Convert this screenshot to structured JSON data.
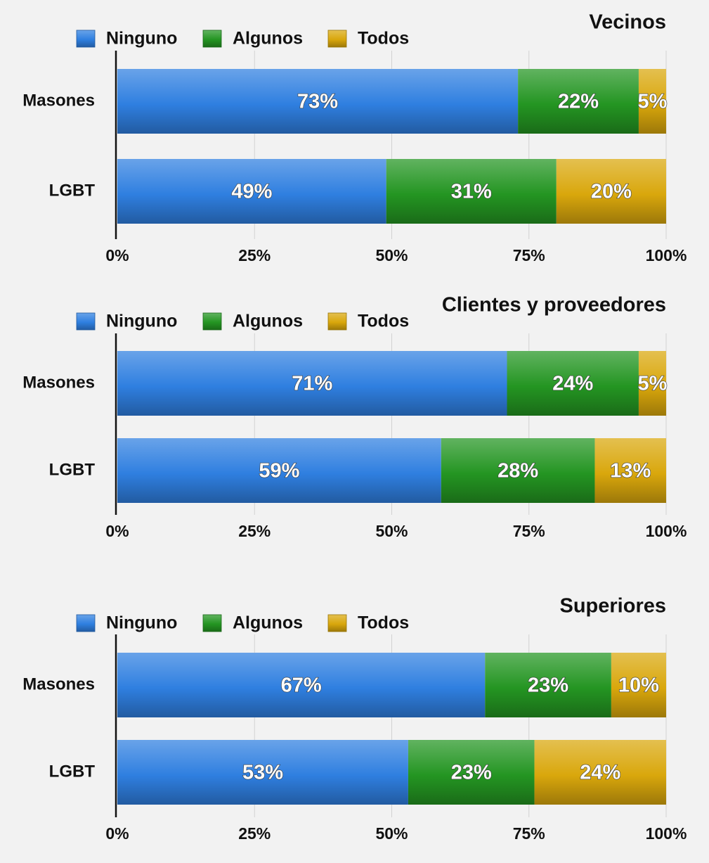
{
  "chart_data": [
    {
      "type": "bar",
      "orientation": "horizontal",
      "stacked": true,
      "title": "Vecinos",
      "categories": [
        "Masones",
        "LGBT"
      ],
      "series": [
        {
          "name": "Ninguno",
          "values": [
            73,
            49
          ],
          "color": "#2f7fe0",
          "labels": [
            "73%",
            "49%"
          ]
        },
        {
          "name": "Algunos",
          "values": [
            22,
            31
          ],
          "color": "#249522",
          "labels": [
            "22%",
            "31%"
          ]
        },
        {
          "name": "Todos",
          "values": [
            5,
            20
          ],
          "color": "#d9a70c",
          "labels": [
            "5%",
            "20%"
          ]
        }
      ],
      "xlim": [
        0,
        100
      ],
      "xticks": [
        "0%",
        "25%",
        "50%",
        "75%",
        "100%"
      ],
      "grid": true,
      "legend_position": "top-left"
    },
    {
      "type": "bar",
      "orientation": "horizontal",
      "stacked": true,
      "title": "Clientes y proveedores",
      "categories": [
        "Masones",
        "LGBT"
      ],
      "series": [
        {
          "name": "Ninguno",
          "values": [
            71,
            59
          ],
          "color": "#2f7fe0",
          "labels": [
            "71%",
            "59%"
          ]
        },
        {
          "name": "Algunos",
          "values": [
            24,
            28
          ],
          "color": "#249522",
          "labels": [
            "24%",
            "28%"
          ]
        },
        {
          "name": "Todos",
          "values": [
            5,
            13
          ],
          "color": "#d9a70c",
          "labels": [
            "5%",
            "13%"
          ]
        }
      ],
      "xlim": [
        0,
        100
      ],
      "xticks": [
        "0%",
        "25%",
        "50%",
        "75%",
        "100%"
      ],
      "grid": true,
      "legend_position": "top-left"
    },
    {
      "type": "bar",
      "orientation": "horizontal",
      "stacked": true,
      "title": "Superiores",
      "categories": [
        "Masones",
        "LGBT"
      ],
      "series": [
        {
          "name": "Ninguno",
          "values": [
            67,
            53
          ],
          "color": "#2f7fe0",
          "labels": [
            "67%",
            "53%"
          ]
        },
        {
          "name": "Algunos",
          "values": [
            23,
            23
          ],
          "color": "#249522",
          "labels": [
            "23%",
            "23%"
          ]
        },
        {
          "name": "Todos",
          "values": [
            10,
            24
          ],
          "color": "#d9a70c",
          "labels": [
            "10%",
            "24%"
          ]
        }
      ],
      "xlim": [
        0,
        100
      ],
      "xticks": [
        "0%",
        "25%",
        "50%",
        "75%",
        "100%"
      ],
      "grid": true,
      "legend_position": "top-left"
    }
  ]
}
